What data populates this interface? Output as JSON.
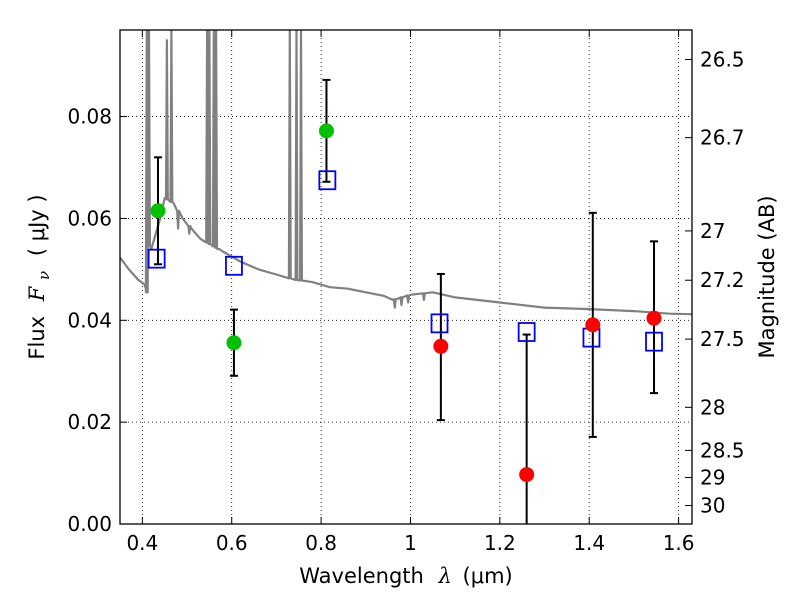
{
  "chart_data": {
    "type": "scatter",
    "xlabel": "Wavelength",
    "xlabel_symbol": "λ",
    "xlabel_unit": "(μm)",
    "ylabel": "Flux",
    "ylabel_symbol_main": "F",
    "ylabel_symbol_sub": "ν",
    "ylabel_unit": "( μJy )",
    "y2label": "Magnitude (AB)",
    "xlim": [
      0.35,
      1.63
    ],
    "ylim": [
      0.0,
      0.097
    ],
    "x_ticks": [
      {
        "value": 0.4,
        "label": "0.4"
      },
      {
        "value": 0.6,
        "label": "0.6"
      },
      {
        "value": 0.8,
        "label": "0.8"
      },
      {
        "value": 1.0,
        "label": "1"
      },
      {
        "value": 1.2,
        "label": "1.2"
      },
      {
        "value": 1.4,
        "label": "1.4"
      },
      {
        "value": 1.6,
        "label": "1.6"
      }
    ],
    "y_ticks": [
      {
        "value": 0.0,
        "label": "0.00"
      },
      {
        "value": 0.02,
        "label": "0.02"
      },
      {
        "value": 0.04,
        "label": "0.04"
      },
      {
        "value": 0.06,
        "label": "0.06"
      },
      {
        "value": 0.08,
        "label": "0.08"
      }
    ],
    "y2_ticks": [
      {
        "value": 26.5,
        "label": "26.5"
      },
      {
        "value": 26.7,
        "label": "26.7"
      },
      {
        "value": 27.0,
        "label": "27"
      },
      {
        "value": 27.2,
        "label": "27.2"
      },
      {
        "value": 27.5,
        "label": "27.5"
      },
      {
        "value": 28.0,
        "label": "28"
      },
      {
        "value": 28.5,
        "label": "28.5"
      },
      {
        "value": 29.0,
        "label": "29"
      },
      {
        "value": 30.0,
        "label": "30"
      }
    ],
    "grid": true,
    "sed_model": {
      "color": "#808080",
      "continuum": [
        [
          0.35,
          0.0523
        ],
        [
          0.37,
          0.05
        ],
        [
          0.39,
          0.048
        ],
        [
          0.405,
          0.047
        ],
        [
          0.41,
          0.0455
        ],
        [
          0.412,
          0.055
        ],
        [
          0.42,
          0.054
        ],
        [
          0.43,
          0.057
        ],
        [
          0.44,
          0.06
        ],
        [
          0.45,
          0.064
        ],
        [
          0.47,
          0.063
        ],
        [
          0.49,
          0.06
        ],
        [
          0.51,
          0.058
        ],
        [
          0.53,
          0.056
        ],
        [
          0.55,
          0.055
        ],
        [
          0.58,
          0.0535
        ],
        [
          0.62,
          0.0515
        ],
        [
          0.66,
          0.05
        ],
        [
          0.7,
          0.049
        ],
        [
          0.74,
          0.048
        ],
        [
          0.78,
          0.0475
        ],
        [
          0.82,
          0.0465
        ],
        [
          0.86,
          0.0462
        ],
        [
          0.9,
          0.0455
        ],
        [
          0.94,
          0.0448
        ],
        [
          0.96,
          0.044
        ],
        [
          0.98,
          0.0445
        ],
        [
          1.0,
          0.045
        ],
        [
          1.05,
          0.0455
        ],
        [
          1.1,
          0.0445
        ],
        [
          1.2,
          0.0435
        ],
        [
          1.3,
          0.0425
        ],
        [
          1.4,
          0.0422
        ],
        [
          1.5,
          0.0418
        ],
        [
          1.58,
          0.0413
        ],
        [
          1.63,
          0.0412
        ]
      ],
      "spikes": [
        [
          0.41,
          0.097
        ],
        [
          0.415,
          0.097
        ],
        [
          0.455,
          0.095
        ],
        [
          0.465,
          0.097
        ],
        [
          0.545,
          0.097
        ],
        [
          0.55,
          0.097
        ],
        [
          0.56,
          0.097
        ],
        [
          0.565,
          0.097
        ],
        [
          0.73,
          0.097
        ],
        [
          0.745,
          0.097
        ],
        [
          0.755,
          0.097
        ]
      ],
      "dips": [
        [
          0.48,
          0.058
        ],
        [
          0.505,
          0.057
        ],
        [
          0.57,
          0.054
        ],
        [
          0.965,
          0.0425
        ],
        [
          0.98,
          0.043
        ],
        [
          0.995,
          0.0435
        ],
        [
          1.03,
          0.044
        ]
      ]
    },
    "model_photometry": {
      "marker": "open-square",
      "color": "#0000ff",
      "points": [
        {
          "x": 0.432,
          "y": 0.0521
        },
        {
          "x": 0.605,
          "y": 0.0507
        },
        {
          "x": 0.814,
          "y": 0.0675
        },
        {
          "x": 1.065,
          "y": 0.0394
        },
        {
          "x": 1.26,
          "y": 0.0377
        },
        {
          "x": 1.405,
          "y": 0.0366
        },
        {
          "x": 1.545,
          "y": 0.0358
        }
      ]
    },
    "observed_detections": {
      "marker": "filled-circle",
      "color": "#00c000",
      "points": [
        {
          "x": 0.435,
          "y": 0.0615,
          "err_low": 0.0105,
          "err_high": 0.0105
        },
        {
          "x": 0.605,
          "y": 0.0356,
          "err_low": 0.0065,
          "err_high": 0.0065
        },
        {
          "x": 0.812,
          "y": 0.0772,
          "err_low": 0.01,
          "err_high": 0.01
        }
      ]
    },
    "observed_nondetections": {
      "marker": "filled-circle",
      "color": "#ff0000",
      "points": [
        {
          "x": 1.068,
          "y": 0.0349,
          "err_low": 0.0145,
          "err_high": 0.0142
        },
        {
          "x": 1.26,
          "y": 0.0097,
          "err_low": 0.01,
          "err_high": 0.0275
        },
        {
          "x": 1.408,
          "y": 0.0391,
          "err_low": 0.022,
          "err_high": 0.022
        },
        {
          "x": 1.545,
          "y": 0.0404,
          "err_low": 0.0147,
          "err_high": 0.0151
        }
      ]
    }
  }
}
